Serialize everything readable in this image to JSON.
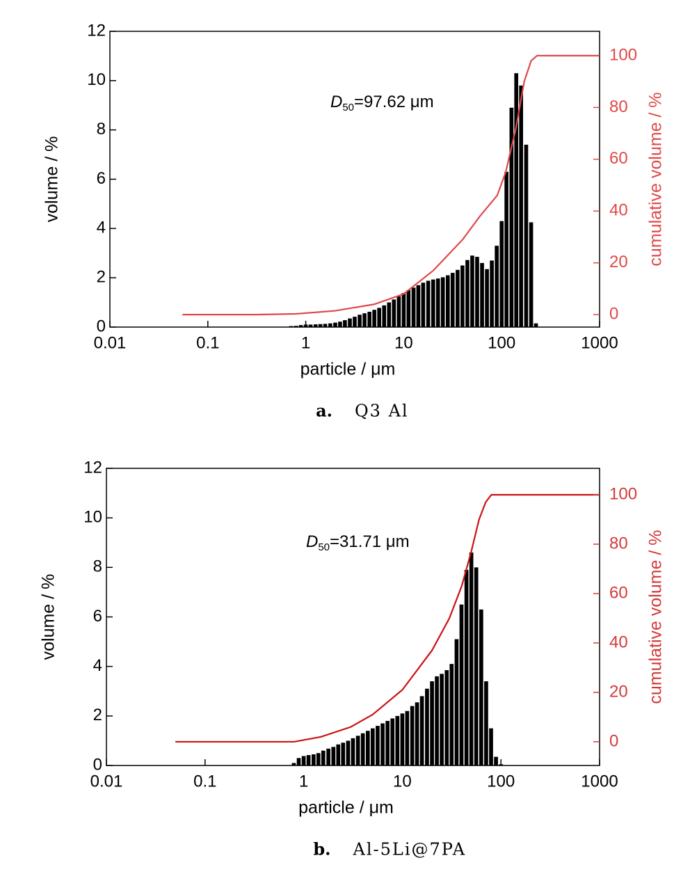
{
  "chart_data": [
    {
      "type": "bar",
      "x_label": "particle / μm",
      "y_label": "volume / %",
      "y2_label": "cumulative volume / %",
      "annotation": {
        "italic": "D",
        "sub": "50",
        "text": "=97.62 μm"
      },
      "caption_label": "a.",
      "caption": "Q3 Al",
      "xlim": [
        0.01,
        1000
      ],
      "xticks": [
        0.01,
        0.1,
        1,
        10,
        100,
        1000
      ],
      "xscale": "log",
      "ylim": [
        0,
        12
      ],
      "yticks": [
        0,
        2,
        4,
        6,
        8,
        10,
        12
      ],
      "y2lim": [
        -4.8,
        109.4
      ],
      "y2ticks": [
        0,
        20,
        40,
        60,
        80,
        100
      ],
      "y2_color": "#e04848",
      "series": [
        {
          "type": "bar",
          "color": "#000000",
          "x": [
            0.708,
            0.794,
            0.891,
            1,
            1.12,
            1.26,
            1.41,
            1.58,
            1.78,
            2,
            2.24,
            2.51,
            2.82,
            3.16,
            3.55,
            3.98,
            4.47,
            5.01,
            5.62,
            6.31,
            7.08,
            7.94,
            8.91,
            10,
            11.2,
            12.6,
            14.1,
            15.8,
            17.8,
            20,
            22.4,
            25.1,
            28.2,
            31.6,
            35.5,
            39.8,
            44.7,
            50.1,
            56.2,
            63.1,
            70.8,
            79.4,
            89.1,
            100,
            112,
            126,
            141,
            158,
            178,
            200,
            224
          ],
          "values": [
            0.04,
            0.05,
            0.08,
            0.1,
            0.1,
            0.11,
            0.12,
            0.13,
            0.15,
            0.18,
            0.22,
            0.28,
            0.35,
            0.42,
            0.5,
            0.56,
            0.62,
            0.7,
            0.78,
            0.88,
            1.0,
            1.12,
            1.25,
            1.38,
            1.5,
            1.6,
            1.7,
            1.8,
            1.88,
            1.93,
            1.97,
            2.02,
            2.1,
            2.2,
            2.32,
            2.5,
            2.72,
            2.9,
            2.85,
            2.6,
            2.35,
            2.7,
            3.3,
            4.3,
            6.3,
            8.9,
            10.3,
            9.8,
            7.4,
            4.25,
            0.15
          ]
        },
        {
          "type": "line",
          "axis": "y2",
          "color": "#e04848",
          "x": [
            0.055,
            0.3,
            0.8,
            2,
            5,
            10,
            20,
            40,
            60,
            90,
            110,
            140,
            170,
            200,
            230,
            1000
          ],
          "values": [
            0,
            0,
            0.3,
            1.5,
            4,
            8,
            17,
            29,
            38,
            46,
            55,
            72,
            90,
            98,
            100,
            100
          ]
        }
      ]
    },
    {
      "type": "bar",
      "x_label": "particle / μm",
      "y_label": "volume / %",
      "y2_label": "cumulative volume / %",
      "annotation": {
        "italic": "D",
        "sub": "50",
        "text": "=31.71 μm"
      },
      "caption_label": "b.",
      "caption": "Al-5Li@7PA",
      "xlim": [
        0.01,
        1000
      ],
      "xticks": [
        0.01,
        0.1,
        1,
        10,
        100,
        1000
      ],
      "xscale": "log",
      "ylim": [
        0,
        12
      ],
      "yticks": [
        0,
        2,
        4,
        6,
        8,
        10,
        12
      ],
      "y2lim": [
        -9.6,
        110.7
      ],
      "y2ticks": [
        0,
        20,
        40,
        60,
        80,
        100
      ],
      "y2_color": "#d43a3a",
      "series": [
        {
          "type": "bar",
          "color": "#000000",
          "x": [
            0.794,
            0.891,
            1,
            1.12,
            1.26,
            1.41,
            1.58,
            1.78,
            2,
            2.24,
            2.51,
            2.82,
            3.16,
            3.55,
            3.98,
            4.47,
            5.01,
            5.62,
            6.31,
            7.08,
            7.94,
            8.91,
            10,
            11.2,
            12.6,
            14.1,
            15.8,
            17.8,
            20,
            22.4,
            25.1,
            28.2,
            31.6,
            35.5,
            39.8,
            44.7,
            50.1,
            56.2,
            63.1,
            70.8,
            79.4,
            89.1,
            100
          ],
          "values": [
            0.1,
            0.3,
            0.38,
            0.42,
            0.45,
            0.5,
            0.6,
            0.68,
            0.75,
            0.85,
            0.92,
            1.0,
            1.1,
            1.2,
            1.3,
            1.4,
            1.5,
            1.6,
            1.7,
            1.8,
            1.9,
            2.0,
            2.1,
            2.2,
            2.4,
            2.55,
            2.8,
            3.1,
            3.4,
            3.6,
            3.7,
            3.85,
            4.1,
            5.1,
            6.5,
            7.9,
            8.6,
            8.0,
            6.3,
            3.4,
            1.5,
            0.35,
            0.05
          ]
        },
        {
          "type": "line",
          "axis": "y2",
          "color": "#cc1111",
          "x": [
            0.05,
            0.8,
            1.5,
            3,
            5,
            10,
            20,
            30,
            40,
            50,
            60,
            70,
            80,
            1000
          ],
          "values": [
            0,
            0,
            2,
            6,
            11,
            21,
            37,
            50,
            63,
            77,
            90,
            97,
            100,
            100
          ]
        }
      ]
    }
  ]
}
